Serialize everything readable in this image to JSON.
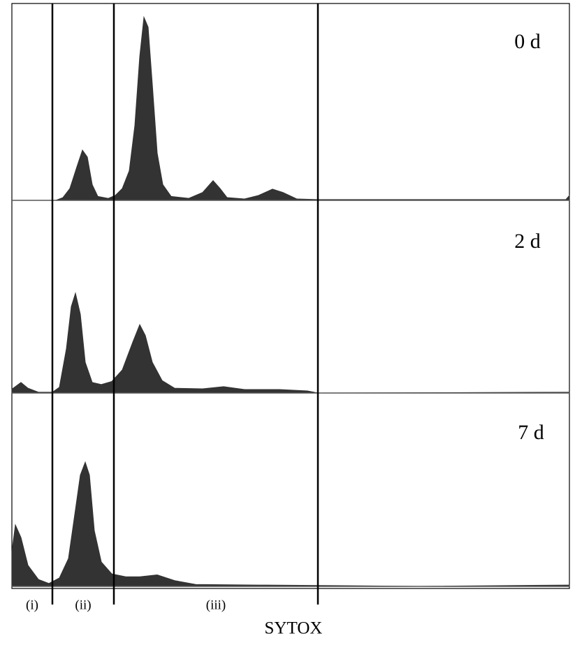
{
  "chart_data": [
    {
      "type": "area",
      "title": "0 d",
      "color": "#333333",
      "xlim": [
        0,
        798
      ],
      "ylim": [
        0,
        100
      ],
      "x": [
        0,
        63,
        73,
        83,
        93,
        101,
        108,
        115,
        123,
        138,
        148,
        158,
        168,
        176,
        183,
        189,
        195,
        201,
        208,
        216,
        228,
        253,
        273,
        288,
        298,
        308,
        333,
        353,
        373,
        388,
        408,
        438,
        793,
        798
      ],
      "values": [
        0,
        0,
        1.4,
        6,
        17,
        25.5,
        22,
        8,
        2,
        1,
        2.5,
        6,
        15,
        38,
        73,
        93,
        88,
        59,
        24,
        8,
        2,
        1,
        4,
        10,
        6,
        1.4,
        0.7,
        2.5,
        5.7,
        4,
        0.7,
        0.4,
        0.4,
        2.5
      ]
    },
    {
      "type": "area",
      "title": "2 d",
      "color": "#333333",
      "xlim": [
        0,
        798
      ],
      "ylim": [
        0,
        100
      ],
      "x": [
        0,
        13,
        23,
        38,
        58,
        68,
        78,
        85,
        91,
        98,
        105,
        115,
        128,
        143,
        158,
        173,
        183,
        191,
        201,
        215,
        233,
        273,
        303,
        333,
        383,
        423,
        438,
        798
      ],
      "values": [
        2,
        5.5,
        2.5,
        0.4,
        0.4,
        3,
        23,
        45,
        52,
        41,
        16,
        5.5,
        4.4,
        6,
        12,
        26.5,
        35.6,
        30,
        16,
        6.5,
        2.5,
        2.2,
        3.3,
        1.8,
        1.8,
        1.1,
        0,
        0.4
      ]
    },
    {
      "type": "area",
      "title": "7 d",
      "color": "#333333",
      "xlim": [
        0,
        798
      ],
      "ylim": [
        0,
        100
      ],
      "x": [
        0,
        5,
        13,
        23,
        38,
        53,
        68,
        81,
        91,
        98,
        105,
        111,
        118,
        128,
        143,
        163,
        183,
        208,
        233,
        263,
        353,
        463,
        583,
        798
      ],
      "values": [
        18,
        32,
        25.5,
        11,
        3.6,
        1.5,
        4.4,
        14.5,
        40,
        58,
        64.7,
        58,
        29,
        12.7,
        6.5,
        5,
        5,
        6,
        3,
        1,
        0.7,
        0.4,
        0,
        0.7
      ],
      "gates": [
        58,
        146,
        438
      ],
      "gate_labels": [
        "(i)",
        "(ii)",
        "(iii)"
      ],
      "xlabel": "SYTOX"
    }
  ]
}
